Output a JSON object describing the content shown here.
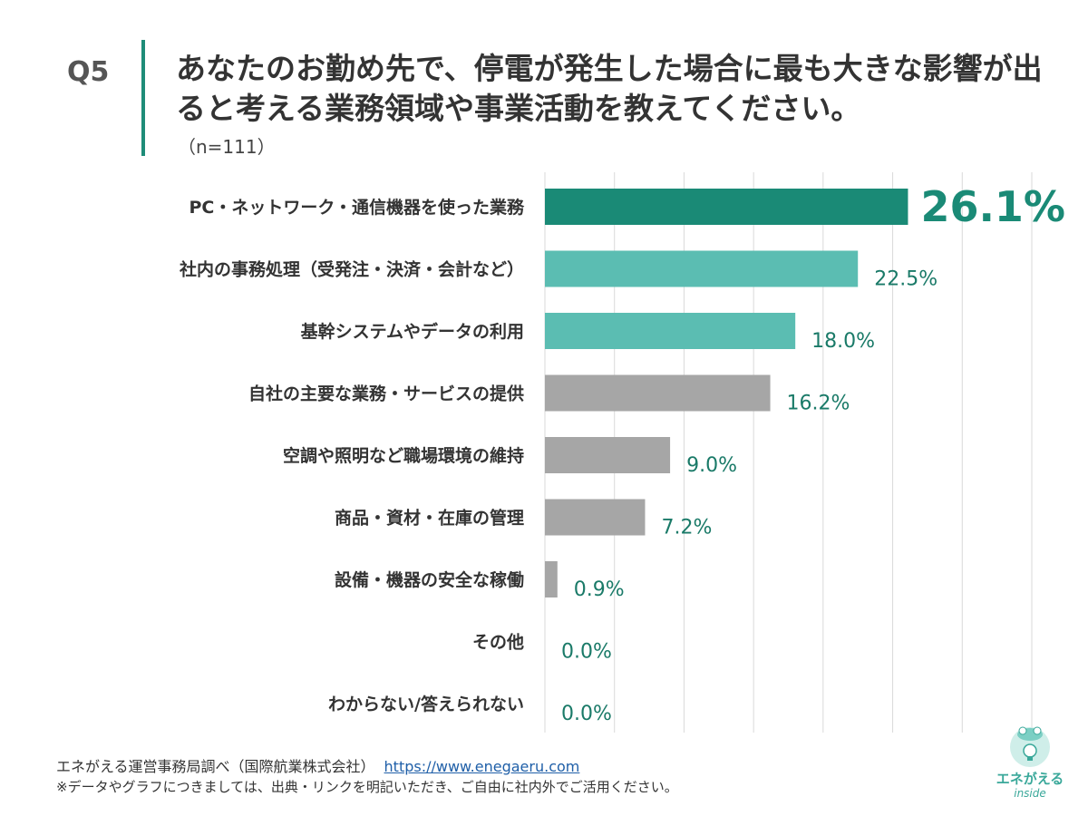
{
  "header": {
    "question_label": "Q5",
    "title": "あなたのお勤め先で、停電が発生した場合に最も大きな影響が出ると考える業務領域や事業活動を教えてください。",
    "sample": "（n=111）"
  },
  "chart_data": {
    "type": "bar",
    "orientation": "horizontal",
    "categories": [
      "PC・ネットワーク・通信機器を使った業務",
      "社内の事務処理（受発注・決済・会計など）",
      "基幹システムやデータの利用",
      "自社の主要な業務・サービスの提供",
      "空調や照明など職場環境の維持",
      "商品・資材・在庫の管理",
      "設備・機器の安全な稼働",
      "その他",
      "わからない/答えられない"
    ],
    "values": [
      26.1,
      22.5,
      18.0,
      16.2,
      9.0,
      7.2,
      0.9,
      0.0,
      0.0
    ],
    "value_labels": [
      "26.1%",
      "22.5%",
      "18.0%",
      "16.2%",
      "9.0%",
      "7.2%",
      "0.9%",
      "0.0%",
      "0.0%"
    ],
    "xlim": [
      0,
      35
    ],
    "grid": true,
    "colors": {
      "top": "#1a8a76",
      "highlight": "#5bbdb2",
      "other": "#a6a6a6",
      "label": "#1a7a68",
      "grid": "#d9d9d9"
    }
  },
  "footer": {
    "source": "エネがえる運営事務局調べ（国際航業株式会社）",
    "link": "https://www.enegaeru.com",
    "note": "※データやグラフにつきましては、出典・リンクを明記いただき、ご自由に社内外でご活用ください。"
  },
  "logo": {
    "name": "エネがえる",
    "sub": "inside",
    "color": "#3aa89a"
  }
}
